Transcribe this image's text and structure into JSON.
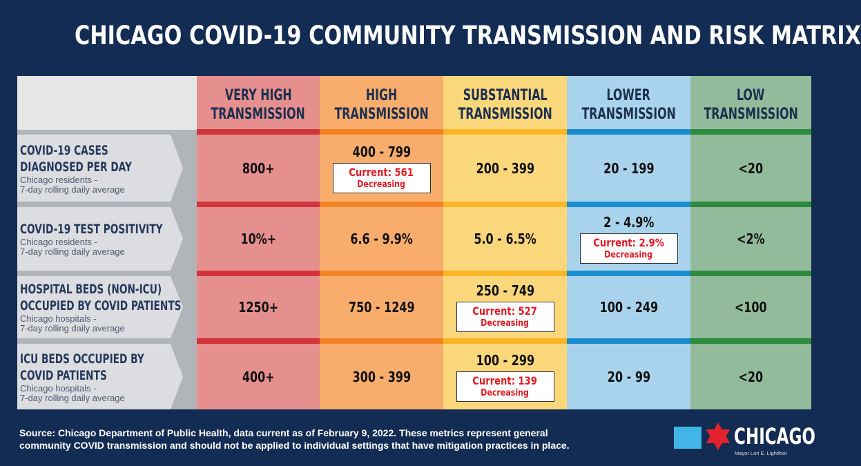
{
  "title": "CHICAGO COVID-19 COMMUNITY TRANSMISSION AND RISK MATRIX",
  "columns": [
    {
      "line1": "VERY HIGH",
      "line2": "TRANSMISSION",
      "bg": "#e68f8f",
      "bar": "#d1343a"
    },
    {
      "line1": "HIGH",
      "line2": "TRANSMISSION",
      "bg": "#f9ad6c",
      "bar": "#f28325"
    },
    {
      "line1": "SUBSTANTIAL",
      "line2": "TRANSMISSION",
      "bg": "#fbd77c",
      "bar": "#fbb527"
    },
    {
      "line1": "LOWER",
      "line2": "TRANSMISSION",
      "bg": "#a9d3ec",
      "bar": "#1a8cd0"
    },
    {
      "line1": "LOW",
      "line2": "TRANSMISSION",
      "bg": "#92bb9b",
      "bar": "#2e8a3f"
    }
  ],
  "rows": [
    {
      "title_lines": [
        "COVID-19 CASES",
        "DIAGNOSED PER DAY"
      ],
      "sub_lines": [
        "Chicago residents -",
        "7-day rolling daily average"
      ],
      "cells": [
        {
          "range": "800+"
        },
        {
          "range": "400 - 799",
          "current": "Current: 561",
          "trend": "Decreasing"
        },
        {
          "range": "200 - 399"
        },
        {
          "range": "20 - 199"
        },
        {
          "range": "<20"
        }
      ]
    },
    {
      "title_lines": [
        "COVID-19 TEST POSITIVITY"
      ],
      "sub_lines": [
        "Chicago residents -",
        "7-day rolling daily average"
      ],
      "cells": [
        {
          "range": "10%+"
        },
        {
          "range": "6.6 - 9.9%"
        },
        {
          "range": "5.0 - 6.5%"
        },
        {
          "range": "2 - 4.9%",
          "current": "Current: 2.9%",
          "trend": "Decreasing"
        },
        {
          "range": "<2%"
        }
      ]
    },
    {
      "title_lines": [
        "HOSPITAL BEDS (NON-ICU)",
        "OCCUPIED BY COVID PATIENTS"
      ],
      "sub_lines": [
        "Chicago hospitals -",
        "7-day rolling daily average"
      ],
      "cells": [
        {
          "range": "1250+"
        },
        {
          "range": "750 - 1249"
        },
        {
          "range": "250 -  749",
          "current": "Current: 527",
          "trend": "Decreasing"
        },
        {
          "range": "100 - 249"
        },
        {
          "range": "<100"
        }
      ]
    },
    {
      "title_lines": [
        "ICU BEDS OCCUPIED BY",
        "COVID PATIENTS"
      ],
      "sub_lines": [
        "Chicago hospitals -",
        "7-day rolling daily average"
      ],
      "cells": [
        {
          "range": "400+"
        },
        {
          "range": "300 - 399"
        },
        {
          "range": "100 - 299",
          "current": "Current: 139",
          "trend": "Decreasing"
        },
        {
          "range": "20 - 99"
        },
        {
          "range": "<20"
        }
      ]
    }
  ],
  "footer": {
    "line1": "Source: Chicago Department of Public Health, data current as of February 9, 2022. These metrics represent general",
    "line2": "community COVID transmission and should not be applied to individual settings that have mitigation practices in place."
  },
  "logo": {
    "icon": "chicago-flag-star-icon",
    "wordmark": "CHICAGO",
    "subtitle": "Mayor Lori E. Lightfoot",
    "flag_blue": "#41b6e6",
    "star_red": "#e4222e"
  }
}
